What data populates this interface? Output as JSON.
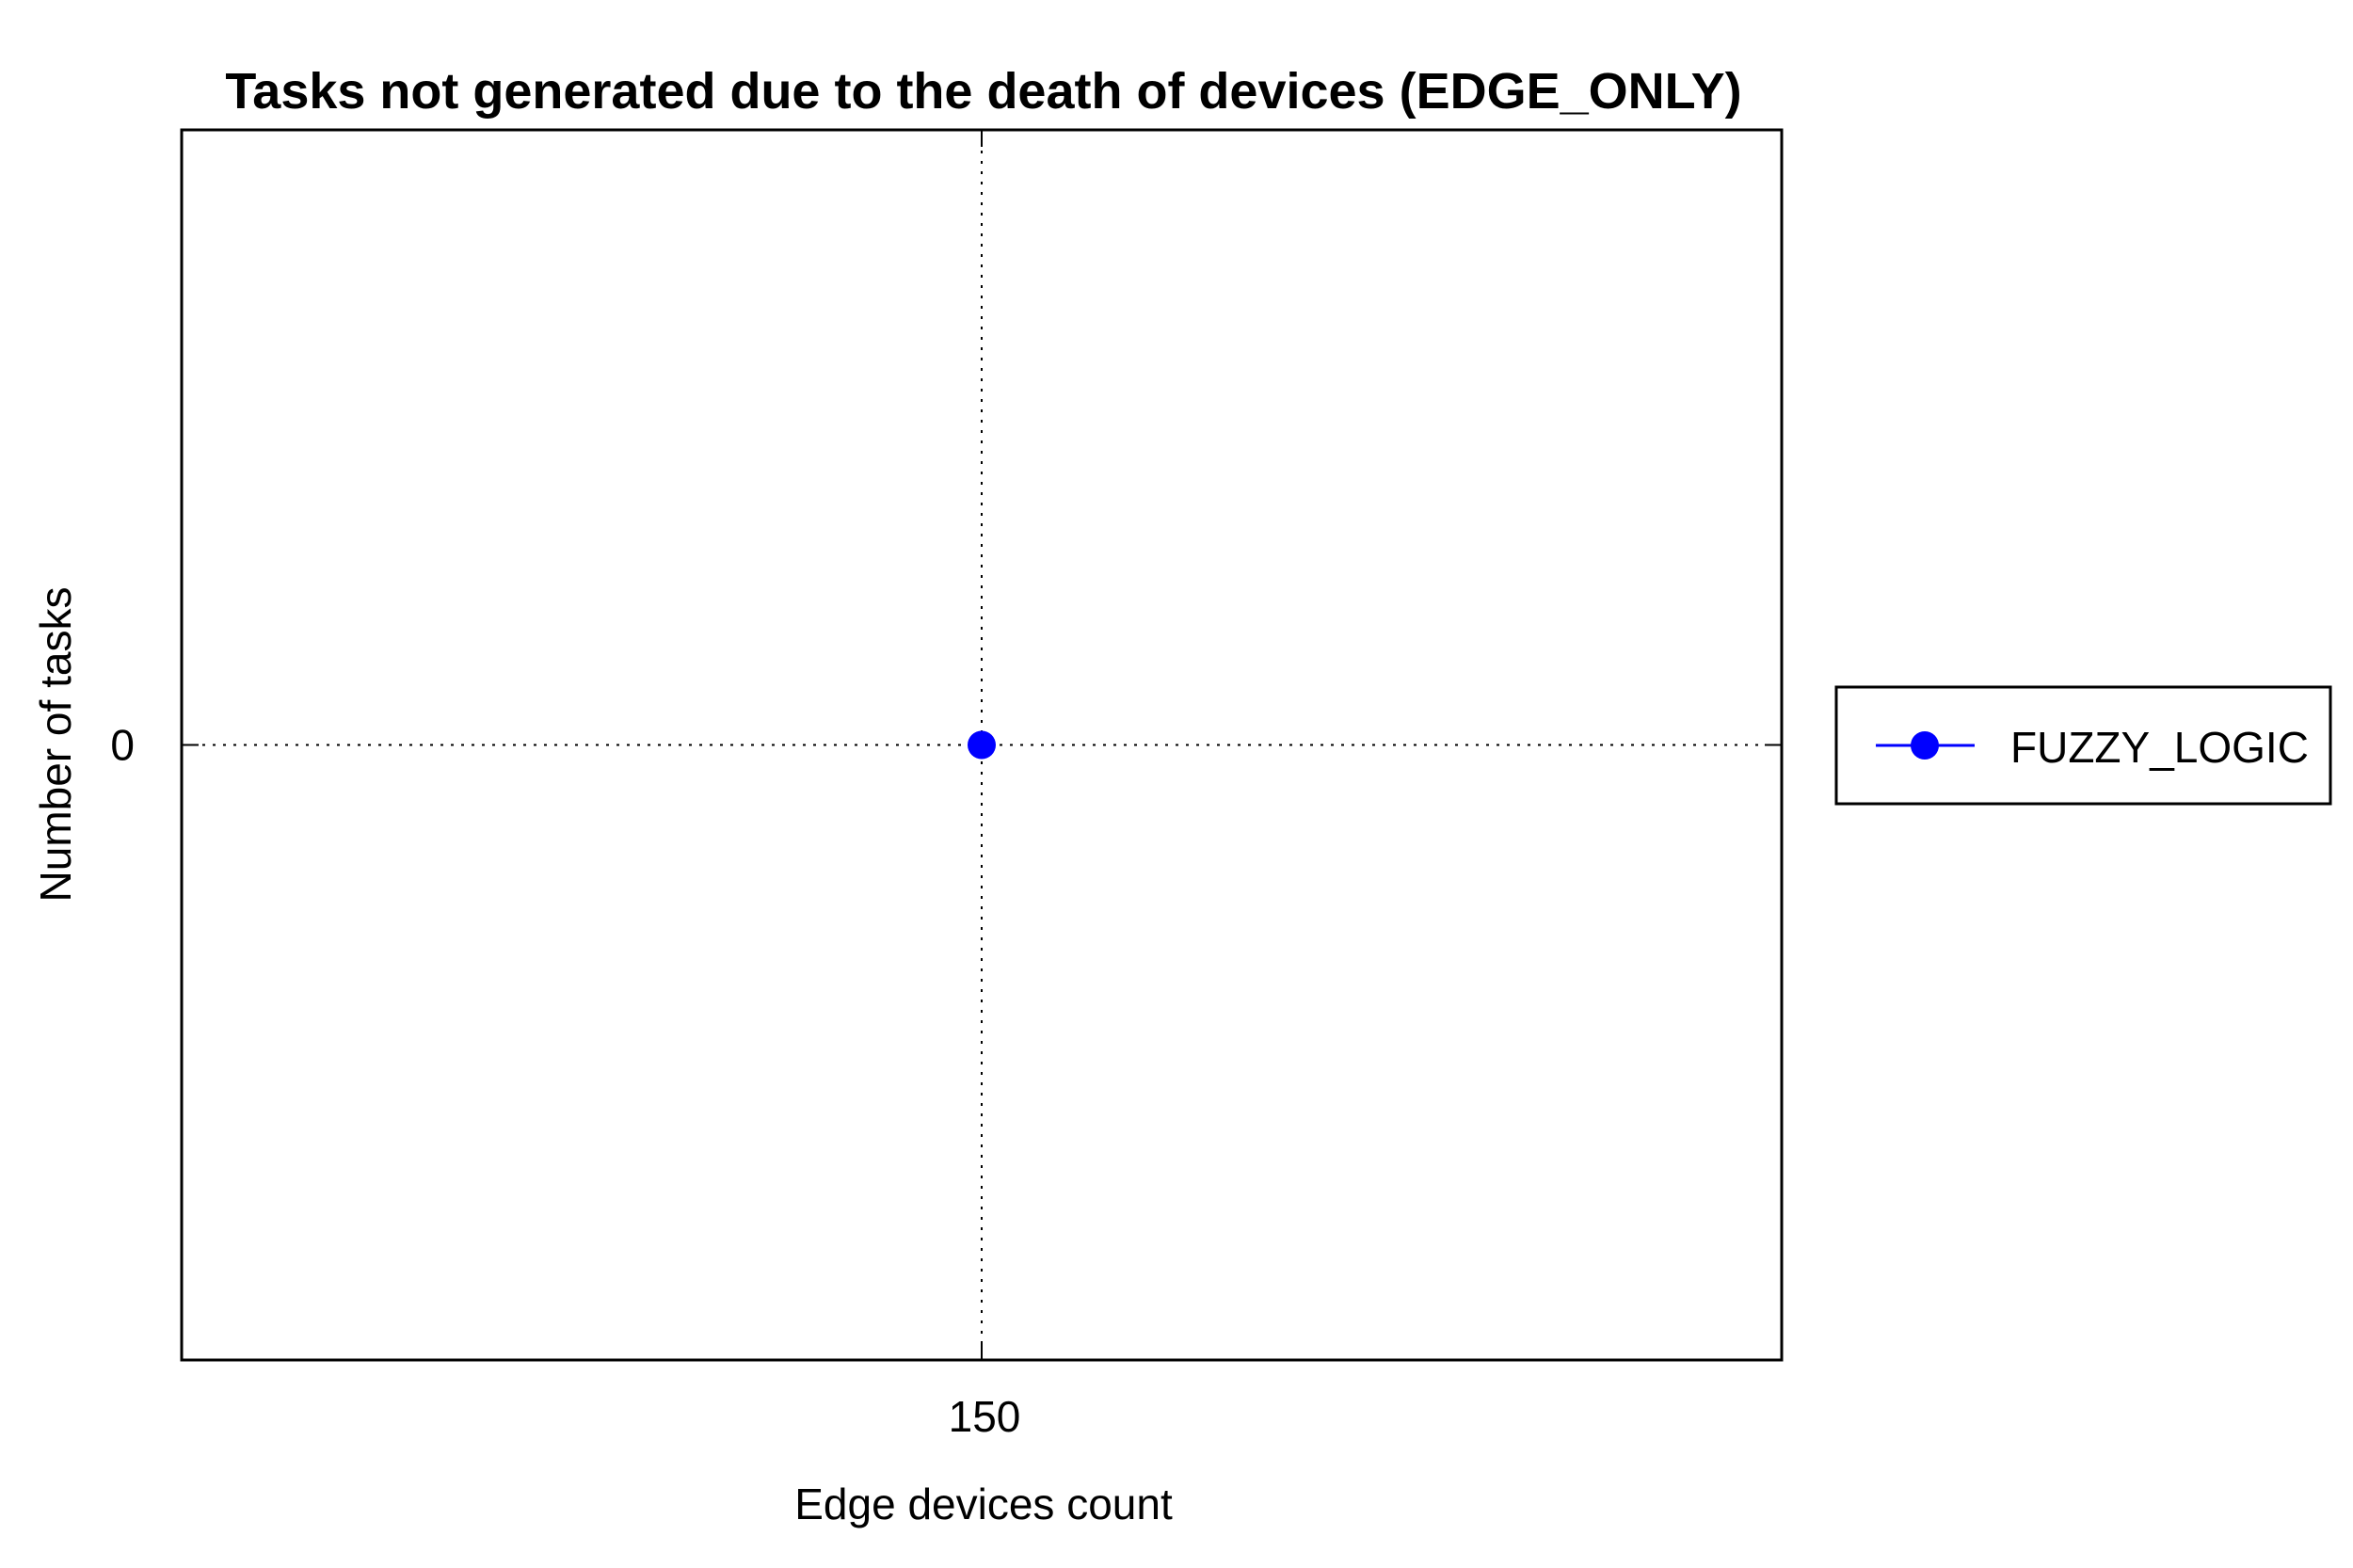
{
  "chart_data": {
    "type": "line",
    "title": "Tasks not generated due to the death of devices (EDGE_ONLY)",
    "xlabel": "Edge devices count",
    "ylabel": "Number of tasks",
    "x_ticks": [
      "150"
    ],
    "y_ticks": [
      "0"
    ],
    "xlim": [
      149,
      151
    ],
    "ylim": [
      -1,
      1
    ],
    "grid": true,
    "legend_position": "right",
    "series": [
      {
        "name": "FUZZY_LOGIC",
        "color": "#0000ff",
        "marker": "circle",
        "x": [
          150
        ],
        "y": [
          0
        ]
      }
    ]
  }
}
